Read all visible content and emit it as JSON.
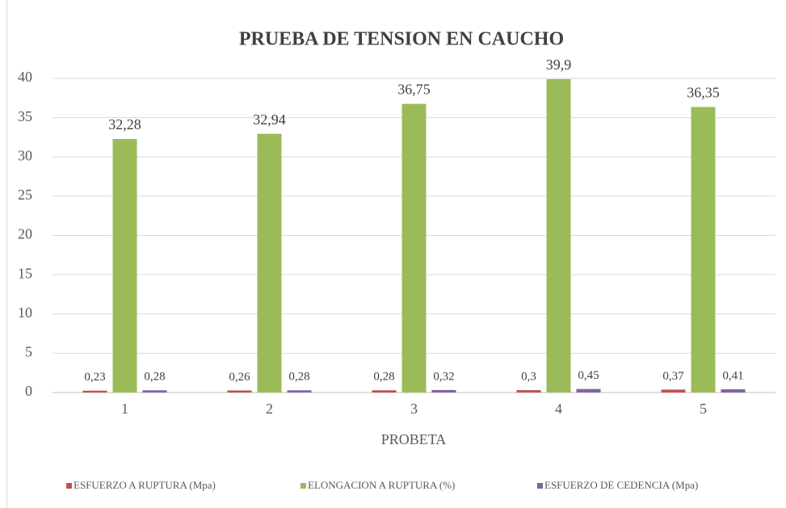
{
  "chart_data": {
    "type": "bar",
    "title": "PRUEBA  DE TENSION  EN CAUCHO",
    "x_label": "PROBETA",
    "categories": [
      "1",
      "2",
      "3",
      "4",
      "5"
    ],
    "series": [
      {
        "name": "ESFUERZO A RUPTURA (Mpa)",
        "color": "#c0504d",
        "values": [
          0.23,
          0.26,
          0.28,
          0.3,
          0.37
        ],
        "value_labels": [
          "0,23",
          "0,26",
          "0,28",
          "0,3",
          "0,37"
        ]
      },
      {
        "name": "ELONGACION A RUPTURA (%)",
        "color": "#9bbb59",
        "values": [
          32.28,
          32.94,
          36.75,
          39.9,
          36.35
        ],
        "value_labels": [
          "32,28",
          "32,94",
          "36,75",
          "39,9",
          "36,35"
        ]
      },
      {
        "name": "ESFUERZO DE CEDENCIA (Mpa)",
        "color": "#8064a2",
        "values": [
          0.28,
          0.28,
          0.32,
          0.45,
          0.41
        ],
        "value_labels": [
          "0,28",
          "0,28",
          "0,32",
          "0,45",
          "0,41"
        ]
      }
    ],
    "ylim": [
      0,
      40
    ],
    "yticks": [
      0,
      5,
      10,
      15,
      20,
      25,
      30,
      35,
      40
    ],
    "grid": true,
    "legend": "bottom"
  }
}
